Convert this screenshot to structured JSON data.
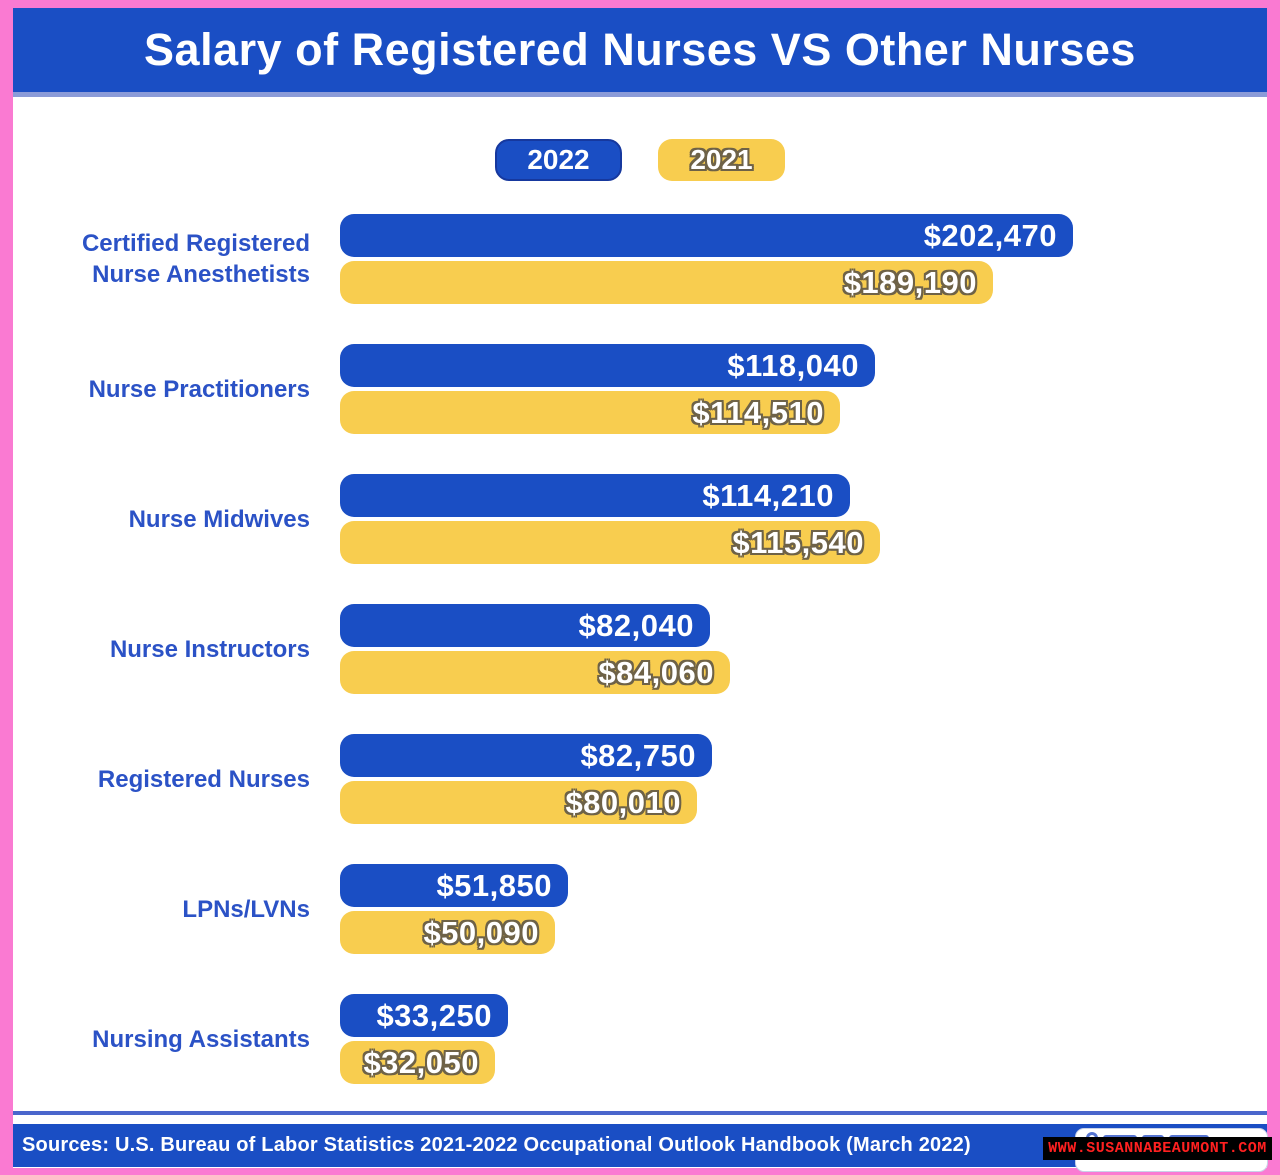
{
  "frame": {
    "border_color": "#fa7ad2",
    "background": "#ffffff"
  },
  "header": {
    "title": "Salary of Registered Nurses VS Other Nurses",
    "bg_color": "#1a4ec4",
    "text_color": "#ffffff",
    "underline_color": "#8b9bd8"
  },
  "legend": {
    "position": "top",
    "items": [
      {
        "label": "2022",
        "color": "#1a4ec4"
      },
      {
        "label": "2021",
        "color": "#f8cd4f"
      }
    ]
  },
  "chart_data": {
    "type": "bar",
    "orientation": "horizontal",
    "title": "Salary of Registered Nurses VS Other Nurses",
    "categories": [
      "Certified Registered Nurse Anesthetists",
      "Nurse Practitioners",
      "Nurse Midwives",
      "Nurse Instructors",
      "Registered Nurses",
      "LPNs/LVNs",
      "Nursing Assistants"
    ],
    "categories_display": [
      [
        "Certified Registered",
        "Nurse Anesthetists"
      ],
      [
        "Nurse Practitioners"
      ],
      [
        "Nurse Midwives"
      ],
      [
        "Nurse Instructors"
      ],
      [
        "Registered Nurses"
      ],
      [
        "LPNs/LVNs"
      ],
      [
        "Nursing Assistants"
      ]
    ],
    "series": [
      {
        "name": "2022",
        "color": "#1a4ec4",
        "values": [
          202470,
          118040,
          114210,
          82040,
          82750,
          51850,
          33250
        ],
        "labels": [
          "$202,470",
          "$118,040",
          "$114,210",
          "$82,040",
          "$82,750",
          "$51,850",
          "$33,250"
        ]
      },
      {
        "name": "2021",
        "color": "#f8cd4f",
        "values": [
          189190,
          114510,
          115540,
          84060,
          80010,
          50090,
          32050
        ],
        "labels": [
          "$189,190",
          "$114,510",
          "$115,540",
          "$84,060",
          "$80,010",
          "$50,090",
          "$32,050"
        ]
      }
    ],
    "value_prefix": "$",
    "legend_position": "top",
    "grid": false,
    "bars_not_to_linear_scale": true,
    "bar_pixel_widths": {
      "s2022": [
        733,
        535,
        510,
        370,
        372,
        228,
        168
      ],
      "s2021": [
        653,
        500,
        540,
        390,
        357,
        215,
        155
      ]
    },
    "label_color": "#2b52c6"
  },
  "footer": {
    "source_text": "Sources: U.S. Bureau of Labor Statistics 2021-2022 Occupational Outlook Handbook (March 2022)",
    "bg_color": "#1a4ec4"
  },
  "watermark": {
    "text": "WWW.SUSANNABEAUMONT.COM",
    "text_color": "#ff2020",
    "bg_color": "#000000"
  }
}
